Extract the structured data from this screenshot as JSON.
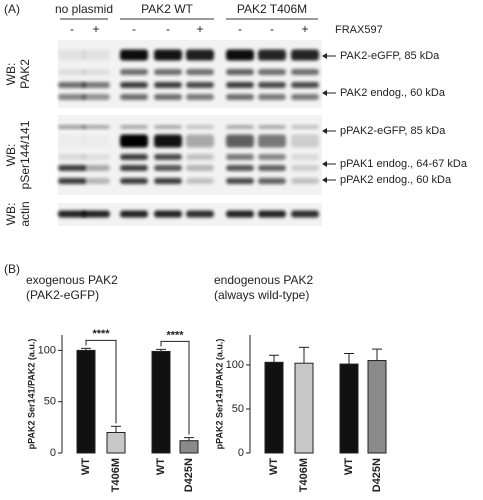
{
  "panel_a": {
    "label": "(A)",
    "groups": [
      "no plasmid",
      "PAK2 WT",
      "PAK2 T406M"
    ],
    "treatments": [
      "-",
      "+",
      "-",
      "-",
      "+",
      "-",
      "-",
      "+"
    ],
    "drug": "FRAX597",
    "blots": [
      {
        "prefix": "WB:",
        "target": "PAK2"
      },
      {
        "prefix": "WB:",
        "target": "pSer144/141"
      },
      {
        "prefix": "WB:",
        "target": "actin"
      }
    ],
    "band_labels": [
      "PAK2-eGFP, 85 kDa",
      "PAK2 endog., 60 kDa",
      "pPAK2-eGFP, 85 kDa",
      "pPAK1 endog., 64-67 kDa",
      "pPAK2 endog., 60 kDa"
    ]
  },
  "panel_b": {
    "label": "(B)"
  },
  "chart_data": [
    {
      "type": "bar",
      "title": "exogenous PAK2",
      "subtitle": "(PAK2-eGFP)",
      "y_label": "pPAK2 Ser141/PAK2 (a.u.)",
      "categories": [
        "WT",
        "T406M",
        "WT",
        "D425N"
      ],
      "values": [
        100,
        20,
        99,
        12
      ],
      "errors": [
        2,
        6,
        2,
        3
      ],
      "colors": [
        "#111111",
        "#c8c8c8",
        "#111111",
        "#8a8a8a"
      ],
      "ylim": [
        0,
        115
      ],
      "yticks": [
        0,
        50,
        100
      ],
      "annotations": [
        "****",
        "****"
      ]
    },
    {
      "type": "bar",
      "title": "endogenous PAK2",
      "subtitle": "(always wild-type)",
      "y_label": "pPAK2 Ser141/PAK2 (a.u.)",
      "categories": [
        "WT",
        "T406M",
        "WT",
        "D425N"
      ],
      "values": [
        103,
        102,
        101,
        105
      ],
      "errors": [
        8,
        18,
        12,
        13
      ],
      "colors": [
        "#111111",
        "#c8c8c8",
        "#111111",
        "#8a8a8a"
      ],
      "ylim": [
        0,
        134
      ],
      "yticks": [
        0,
        50,
        100
      ]
    }
  ]
}
